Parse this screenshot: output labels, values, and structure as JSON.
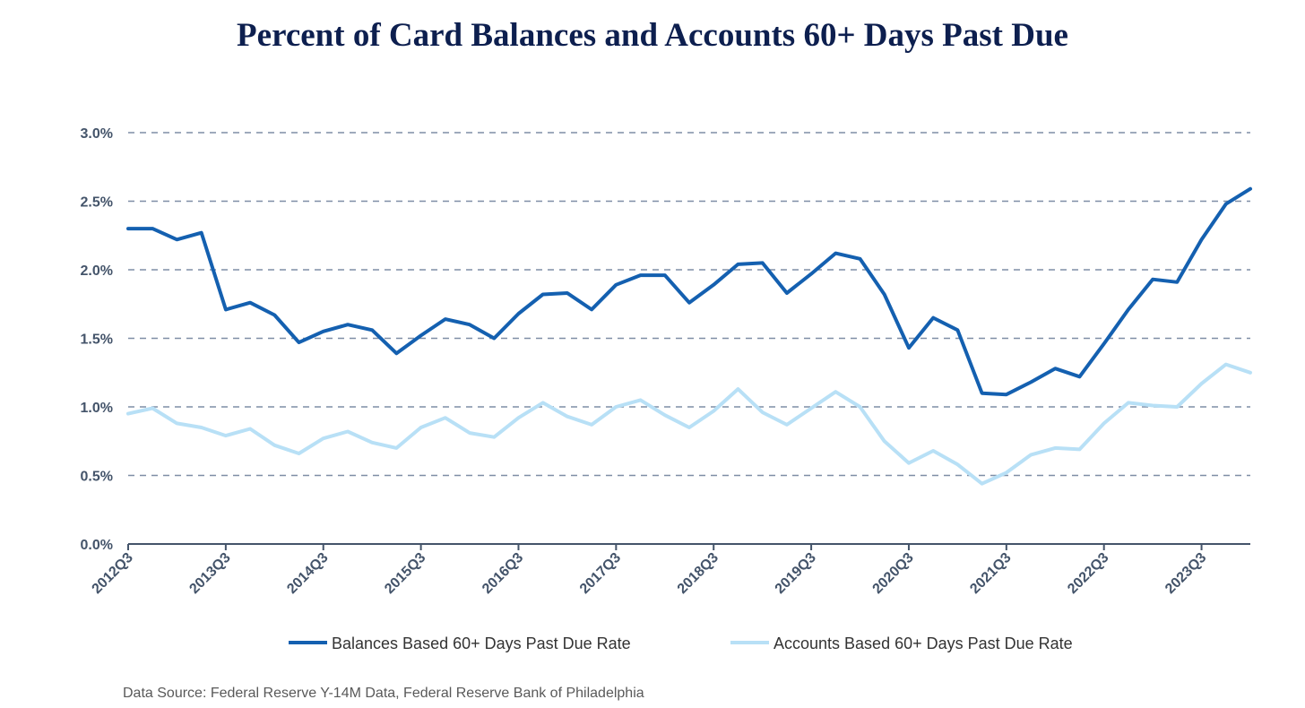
{
  "page": {
    "title": "Percent of Card Balances and Accounts 60+ Days Past Due",
    "source": "Data Source: Federal Reserve Y-14M Data, Federal Reserve Bank of Philadelphia"
  },
  "chart_data": {
    "type": "line",
    "title": "Percent of Card Balances and Accounts 60+ Days Past Due",
    "xlabel": "",
    "ylabel": "",
    "ylim": [
      0,
      3.0
    ],
    "yticks": [
      0.0,
      0.5,
      1.0,
      1.5,
      2.0,
      2.5,
      3.0
    ],
    "ytick_labels": [
      "0.0%",
      "0.5%",
      "1.0%",
      "1.5%",
      "2.0%",
      "2.5%",
      "3.0%"
    ],
    "grid": "horizontal dashed",
    "legend_position": "bottom",
    "x_tick_labels": [
      "2012Q3",
      "2013Q3",
      "2014Q3",
      "2015Q3",
      "2016Q3",
      "2017Q3",
      "2018Q3",
      "2019Q3",
      "2020Q3",
      "2021Q3",
      "2022Q3",
      "2023Q3"
    ],
    "x": [
      "2012Q3",
      "2012Q4",
      "2013Q1",
      "2013Q2",
      "2013Q3",
      "2013Q4",
      "2014Q1",
      "2014Q2",
      "2014Q3",
      "2014Q4",
      "2015Q1",
      "2015Q2",
      "2015Q3",
      "2015Q4",
      "2016Q1",
      "2016Q2",
      "2016Q3",
      "2016Q4",
      "2017Q1",
      "2017Q2",
      "2017Q3",
      "2017Q4",
      "2018Q1",
      "2018Q2",
      "2018Q3",
      "2018Q4",
      "2019Q1",
      "2019Q2",
      "2019Q3",
      "2019Q4",
      "2020Q1",
      "2020Q2",
      "2020Q3",
      "2020Q4",
      "2021Q1",
      "2021Q2",
      "2021Q3",
      "2021Q4",
      "2022Q1",
      "2022Q2",
      "2022Q3",
      "2022Q4",
      "2023Q1",
      "2023Q2",
      "2023Q3",
      "2023Q4",
      "2024Q1"
    ],
    "series": [
      {
        "name": "Balances Based 60+ Days Past Due Rate",
        "color": "#1460b0",
        "values": [
          2.3,
          2.3,
          2.22,
          2.27,
          1.71,
          1.76,
          1.67,
          1.47,
          1.55,
          1.6,
          1.56,
          1.39,
          1.52,
          1.64,
          1.6,
          1.5,
          1.68,
          1.82,
          1.83,
          1.71,
          1.89,
          1.96,
          1.96,
          1.76,
          1.89,
          2.04,
          2.05,
          1.83,
          1.97,
          2.12,
          2.08,
          1.82,
          1.43,
          1.65,
          1.56,
          1.1,
          1.09,
          1.18,
          1.28,
          1.22,
          1.46,
          1.71,
          1.93,
          1.91,
          2.22,
          2.48,
          2.59
        ]
      },
      {
        "name": "Accounts Based 60+ Days Past Due Rate",
        "color": "#b8e0f6",
        "values": [
          0.95,
          0.99,
          0.88,
          0.85,
          0.79,
          0.84,
          0.72,
          0.66,
          0.77,
          0.82,
          0.74,
          0.7,
          0.85,
          0.92,
          0.81,
          0.78,
          0.92,
          1.03,
          0.93,
          0.87,
          1.0,
          1.05,
          0.94,
          0.85,
          0.97,
          1.13,
          0.96,
          0.87,
          0.99,
          1.11,
          1.0,
          0.75,
          0.59,
          0.68,
          0.58,
          0.44,
          0.52,
          0.65,
          0.7,
          0.69,
          0.88,
          1.03,
          1.01,
          1.0,
          1.17,
          1.31,
          1.25
        ]
      }
    ]
  }
}
